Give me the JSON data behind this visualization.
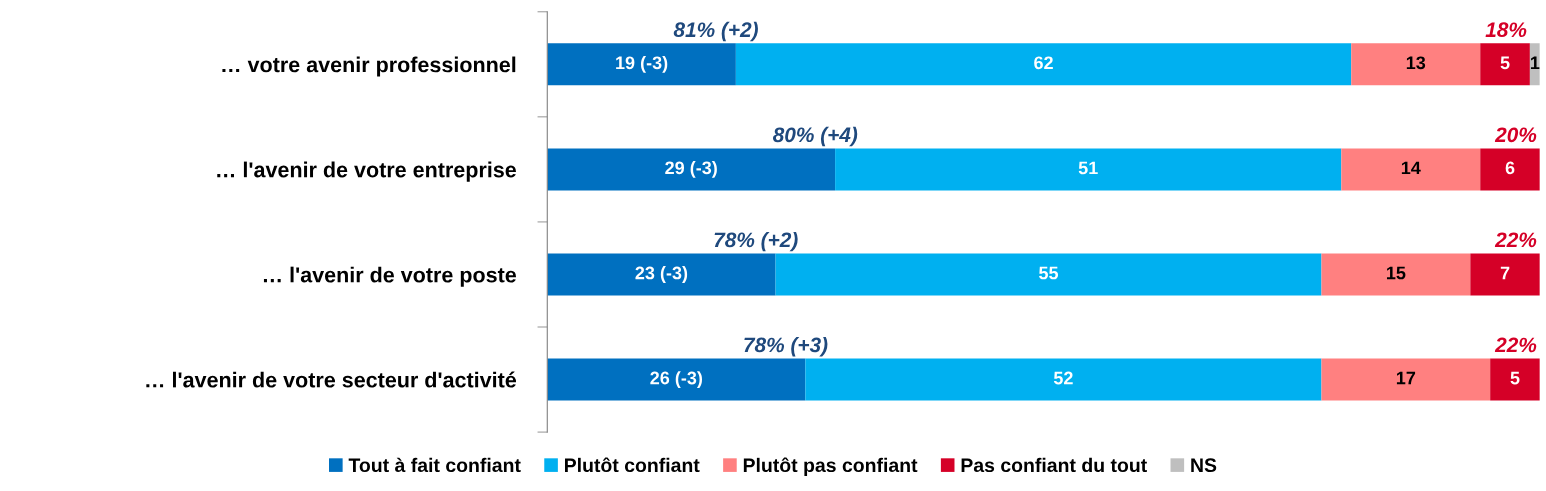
{
  "chart_data": {
    "type": "bar",
    "orientation": "horizontal",
    "stacked": true,
    "categories": [
      "… votre avenir professionnel",
      "… l'avenir de votre entreprise",
      "… l'avenir de votre poste",
      "… l'avenir de votre secteur d'activité"
    ],
    "series": [
      {
        "name": "Tout à fait confiant",
        "color": "#0070c0",
        "values": [
          19,
          29,
          23,
          26
        ],
        "value_labels": [
          "19 (-3)",
          "29 (-3)",
          "23 (-3)",
          "26 (-3)"
        ]
      },
      {
        "name": "Plutôt confiant",
        "color": "#00b0f0",
        "values": [
          62,
          51,
          55,
          52
        ],
        "value_labels": [
          "62",
          "51",
          "55",
          "52"
        ]
      },
      {
        "name": "Plutôt pas confiant",
        "color": "#ff8080",
        "values": [
          13,
          14,
          15,
          17
        ],
        "value_labels": [
          "13",
          "14",
          "15",
          "17"
        ]
      },
      {
        "name": "Pas confiant du tout",
        "color": "#d50027",
        "values": [
          5,
          6,
          7,
          5
        ],
        "value_labels": [
          "5",
          "6",
          "7",
          "5"
        ]
      },
      {
        "name": "NS",
        "color": "#bfbfbf",
        "values": [
          1,
          null,
          null,
          null
        ],
        "value_labels": [
          "1",
          null,
          null,
          null
        ]
      }
    ],
    "xlim": [
      0,
      100
    ],
    "tick_labels": "y",
    "legend": "bottom",
    "grid": false,
    "annotations": [
      "81% (+2)",
      "18%",
      "80% (+4)",
      "20%",
      "78% (+2)",
      "22%",
      "78% (+3)",
      "22%"
    ]
  }
}
